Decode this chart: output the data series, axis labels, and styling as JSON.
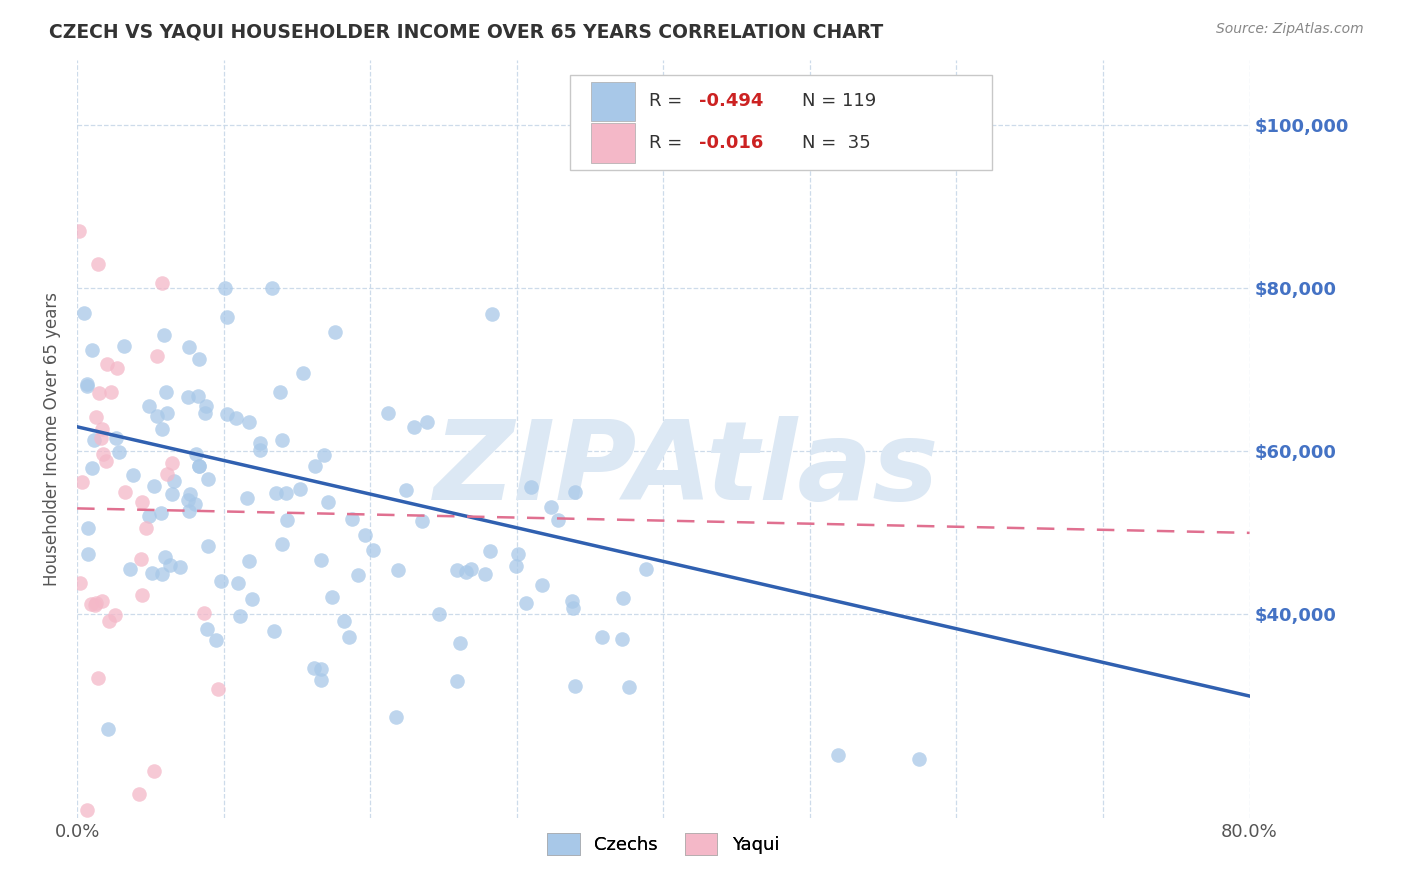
{
  "title": "CZECH VS YAQUI HOUSEHOLDER INCOME OVER 65 YEARS CORRELATION CHART",
  "source": "Source: ZipAtlas.com",
  "ylabel": "Householder Income Over 65 years",
  "xlim": [
    0.0,
    0.8
  ],
  "ylim": [
    15000,
    108000
  ],
  "czech_color": "#a8c8e8",
  "yaqui_color": "#f4b8c8",
  "czech_line_color": "#3060b0",
  "yaqui_line_color": "#e07090",
  "watermark_text": "ZIPAtlas",
  "watermark_color": "#dce8f4",
  "background_color": "#ffffff",
  "grid_color": "#c8d8e8",
  "right_y_tick_labels": [
    "$40,000",
    "$60,000",
    "$80,000",
    "$100,000"
  ],
  "right_y_tick_values": [
    40000,
    60000,
    80000,
    100000
  ],
  "right_y_color": "#4472c4",
  "legend_r_color": "#cc2222",
  "legend_n_color": "#333333",
  "czech_line_x": [
    0.0,
    0.8
  ],
  "czech_line_y": [
    63000,
    30000
  ],
  "yaqui_line_x": [
    0.0,
    0.8
  ],
  "yaqui_line_y": [
    53000,
    50000
  ]
}
